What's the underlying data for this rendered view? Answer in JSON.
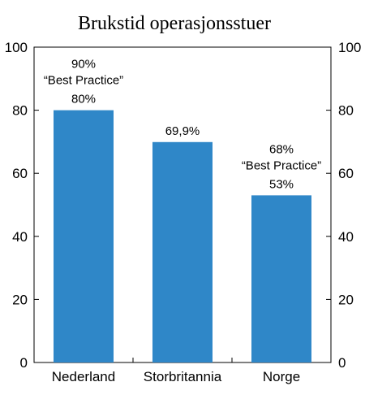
{
  "chart_data": {
    "type": "bar",
    "title": "Brukstid operasjonsstuer",
    "categories": [
      "Nederland",
      "Storbritannia",
      "Norge"
    ],
    "values": [
      80,
      69.9,
      53
    ],
    "value_labels": [
      "80%",
      "69,9%",
      "53%"
    ],
    "annotations": [
      [
        "90%",
        "“Best Practice”"
      ],
      [],
      [
        "68%",
        "“Best Practice”"
      ]
    ],
    "ylim": [
      0,
      100
    ],
    "yticks": [
      0,
      20,
      40,
      60,
      80,
      100
    ],
    "secondary_axis": true,
    "bar_color": "#2f87c8",
    "grid": false
  }
}
